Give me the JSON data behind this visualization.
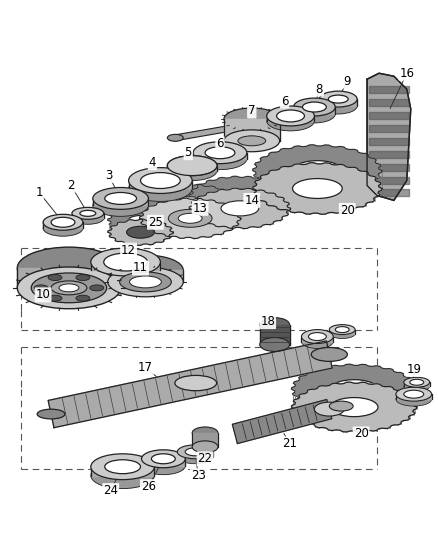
{
  "bg_color": "#ffffff",
  "fig_width": 4.38,
  "fig_height": 5.33,
  "dpi": 100,
  "line_color": "#222222",
  "dark_color": "#111111",
  "mid_color": "#666666",
  "light_color": "#aaaaaa",
  "lighter_color": "#cccccc",
  "chain_color": "#555555"
}
